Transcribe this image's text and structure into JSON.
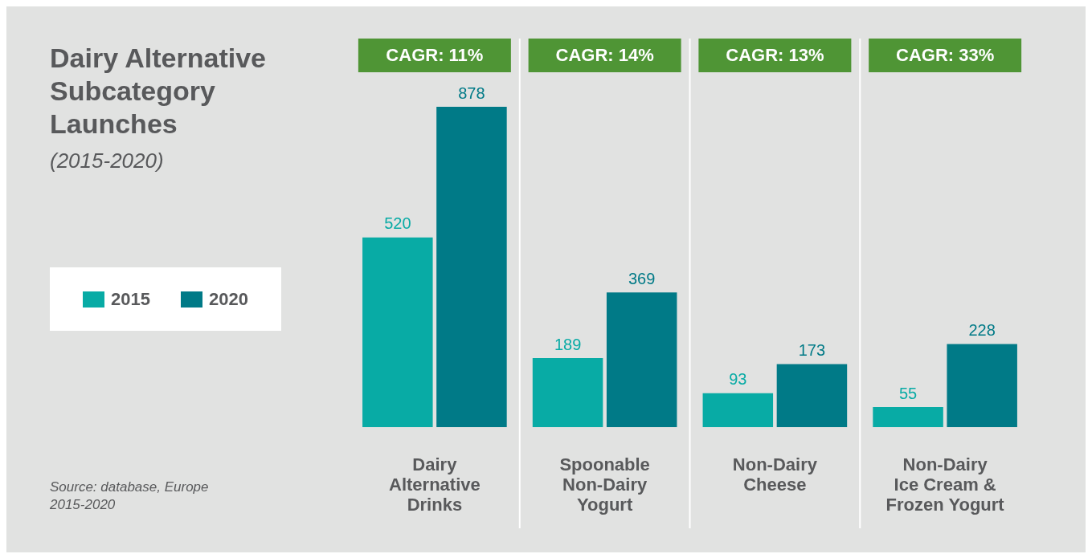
{
  "chart_data": {
    "type": "bar",
    "title": "Dairy Alternative Subcategory Launches",
    "subtitle": "(2015-2020)",
    "categories": [
      "Dairy Alternative Drinks",
      "Spoonable Non-Dairy Yogurt",
      "Non-Dairy Cheese",
      "Non-Dairy Ice Cream & Frozen Yogurt"
    ],
    "series": [
      {
        "name": "2015",
        "color": "#08aba5",
        "values": [
          520,
          189,
          93,
          55
        ]
      },
      {
        "name": "2020",
        "color": "#007a87",
        "values": [
          878,
          369,
          173,
          228
        ]
      }
    ],
    "data_labels": true,
    "grid": "x",
    "legend": "left",
    "annotations": [
      "CAGR: 11%",
      "CAGR: 14%",
      "CAGR: 13%",
      "CAGR: 33%",
      "Source: database, Europe 2015-2020"
    ]
  }
}
